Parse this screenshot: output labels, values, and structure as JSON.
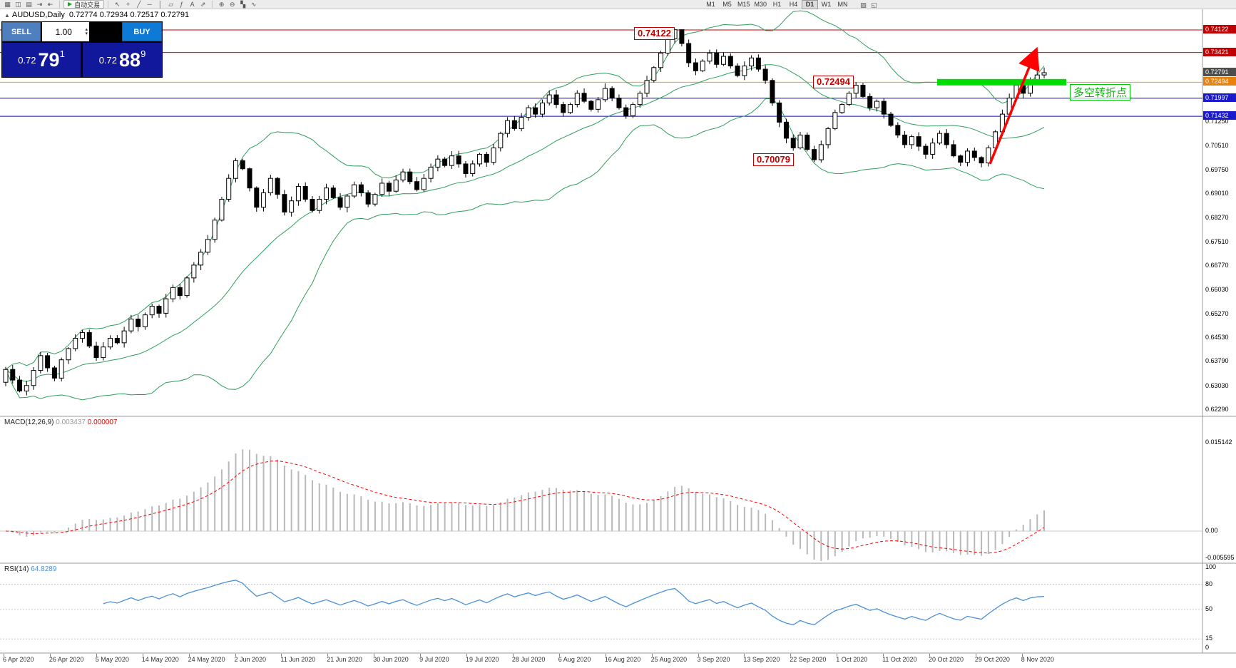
{
  "toolbar": {
    "icons_left": [
      {
        "name": "new-order-icon",
        "glyph": "▦"
      },
      {
        "name": "chart-window-icon",
        "glyph": "◫"
      },
      {
        "name": "profiles-icon",
        "glyph": "▤"
      },
      {
        "name": "auto-scroll-icon",
        "glyph": "⇥"
      },
      {
        "name": "chart-shift-icon",
        "glyph": "⇤"
      }
    ],
    "auto_trading_play": "▶",
    "auto_trading_label": "自动交易",
    "icons_draw": [
      {
        "name": "cursor-icon",
        "glyph": "↖"
      },
      {
        "name": "crosshair-icon",
        "glyph": "+"
      },
      {
        "name": "trendline-icon",
        "glyph": "╱"
      },
      {
        "name": "horizontal-line-icon",
        "glyph": "─"
      },
      {
        "name": "vertical-line-icon",
        "glyph": "│"
      },
      {
        "name": "equidistant-channel-icon",
        "glyph": "▱"
      },
      {
        "name": "fibonacci-icon",
        "glyph": "ƒ"
      },
      {
        "name": "text-label-icon",
        "glyph": "A"
      },
      {
        "name": "arrows-tool-icon",
        "glyph": "⇗"
      }
    ],
    "icons_zoom": [
      {
        "name": "zoom-in-icon",
        "glyph": "⊕"
      },
      {
        "name": "zoom-out-icon",
        "glyph": "⊖"
      },
      {
        "name": "tile-windows-icon",
        "glyph": "▚"
      },
      {
        "name": "indicators-icon",
        "glyph": "∿"
      }
    ],
    "timeframes": [
      "M1",
      "M5",
      "M15",
      "M30",
      "H1",
      "H4",
      "D1",
      "W1",
      "MN"
    ],
    "active_timeframe": "D1",
    "icons_right": [
      {
        "name": "templates-icon",
        "glyph": "▨"
      },
      {
        "name": "strategy-tester-icon",
        "glyph": "◱"
      }
    ]
  },
  "chart": {
    "symbol_marker": "▲",
    "title": "AUDUSD,Daily",
    "ohlc": "0.72774 0.72934 0.72517 0.72791"
  },
  "trade_panel": {
    "sell_label": "SELL",
    "buy_label": "BUY",
    "volume": "1.00",
    "spin_up": "▴",
    "spin_down": "▾",
    "sell_price": {
      "prefix": "0.72",
      "big": "79",
      "sup": "1"
    },
    "buy_price": {
      "prefix": "0.72",
      "big": "88",
      "sup": "9"
    }
  },
  "annotations": {
    "resistance_label": "0.74122",
    "pivot_label": "0.72494",
    "support_label": "0.70079",
    "zone_label": "多空转折点"
  },
  "price_axis": {
    "tags": [
      {
        "text": "0.74122",
        "bg": "#c00000"
      },
      {
        "text": "0.73421",
        "bg": "#c00000"
      },
      {
        "text": "0.72791",
        "bg": "#4d4d4d"
      },
      {
        "text": "0.72494",
        "bg": "#e8820c"
      },
      {
        "text": "0.71997",
        "bg": "#1a1acc"
      },
      {
        "text": "0.71432",
        "bg": "#1a1acc"
      }
    ],
    "plain": [
      "0.71250",
      "0.70510",
      "0.69750",
      "0.69010",
      "0.68270",
      "0.67510",
      "0.66770",
      "0.66030",
      "0.65270",
      "0.64530",
      "0.63790",
      "0.63030",
      "0.62290"
    ]
  },
  "macd": {
    "label": "MACD(12,26,9)",
    "value_main": "0.003437",
    "value_signal": "0.000007",
    "axis": [
      "0.015142",
      "0.00",
      "-0.005595"
    ]
  },
  "rsi": {
    "label": "RSI(14)",
    "value": "64.8289",
    "axis": [
      "100",
      "80",
      "50",
      "15",
      "0"
    ]
  },
  "dates": [
    "6 Apr 2020",
    "26 Apr 2020",
    "5 May 2020",
    "14 May 2020",
    "24 May 2020",
    "2 Jun 2020",
    "11 Jun 2020",
    "21 Jun 2020",
    "30 Jun 2020",
    "9 Jul 2020",
    "19 Jul 2020",
    "28 Jul 2020",
    "6 Aug 2020",
    "16 Aug 2020",
    "25 Aug 2020",
    "3 Sep 2020",
    "13 Sep 2020",
    "22 Sep 2020",
    "1 Oct 2020",
    "11 Oct 2020",
    "20 Oct 2020",
    "29 Oct 2020",
    "8 Nov 2020"
  ],
  "chart_data": {
    "type": "candlestick",
    "symbol": "AUDUSD",
    "timeframe": "Daily",
    "current": {
      "open": 0.72774,
      "high": 0.72934,
      "low": 0.72517,
      "close": 0.72791,
      "bid": 0.72791,
      "ask": 0.72889
    },
    "y_axis": {
      "top_price": 0.74366,
      "bottom_price": 0.62223
    },
    "closes": [
      0.6355,
      0.6322,
      0.6288,
      0.6305,
      0.6352,
      0.6398,
      0.636,
      0.6328,
      0.6385,
      0.642,
      0.6452,
      0.647,
      0.6428,
      0.6392,
      0.6425,
      0.6452,
      0.6438,
      0.6475,
      0.6512,
      0.6488,
      0.6525,
      0.6552,
      0.653,
      0.6575,
      0.661,
      0.6585,
      0.664,
      0.668,
      0.672,
      0.676,
      0.682,
      0.6885,
      0.695,
      0.7005,
      0.698,
      0.692,
      0.686,
      0.6905,
      0.695,
      0.69,
      0.6845,
      0.688,
      0.6925,
      0.6885,
      0.685,
      0.6885,
      0.692,
      0.689,
      0.686,
      0.6895,
      0.693,
      0.6905,
      0.687,
      0.69,
      0.6935,
      0.691,
      0.6945,
      0.697,
      0.694,
      0.6915,
      0.695,
      0.6985,
      0.701,
      0.699,
      0.702,
      0.6995,
      0.6965,
      0.6995,
      0.7025,
      0.7,
      0.7045,
      0.709,
      0.713,
      0.7105,
      0.714,
      0.717,
      0.715,
      0.7185,
      0.721,
      0.718,
      0.7155,
      0.718,
      0.7215,
      0.719,
      0.7165,
      0.7195,
      0.723,
      0.72,
      0.717,
      0.7145,
      0.718,
      0.7215,
      0.7255,
      0.7295,
      0.734,
      0.7385,
      0.7413,
      0.737,
      0.731,
      0.7285,
      0.7315,
      0.734,
      0.7305,
      0.733,
      0.73,
      0.727,
      0.73,
      0.7325,
      0.729,
      0.7255,
      0.7185,
      0.7125,
      0.7075,
      0.7045,
      0.7085,
      0.704,
      0.7008,
      0.7055,
      0.7105,
      0.7155,
      0.718,
      0.7215,
      0.724,
      0.7205,
      0.717,
      0.719,
      0.715,
      0.7115,
      0.7085,
      0.7055,
      0.708,
      0.705,
      0.7025,
      0.706,
      0.709,
      0.7055,
      0.702,
      0.7,
      0.7035,
      0.7015,
      0.6998,
      0.7045,
      0.7095,
      0.715,
      0.72,
      0.724,
      0.7215,
      0.7255,
      0.7272,
      0.7279
    ],
    "levels": [
      {
        "price": 0.74122,
        "color": "#cc0000"
      },
      {
        "price": 0.73421,
        "color": "#cc0000"
      },
      {
        "price": 0.72494,
        "color": "#ff9900"
      },
      {
        "price": 0.71997,
        "color": "#0000ee"
      },
      {
        "price": 0.71432,
        "color": "#0000ee"
      }
    ],
    "support_price": 0.70079,
    "zone": {
      "price": 0.72494,
      "color": "#00dd00"
    },
    "bollinger": {
      "period": 20,
      "deviation": 2,
      "color": "#2e9e5b"
    },
    "macd": {
      "fast": 12,
      "slow": 26,
      "signal": 9,
      "histogram_color": "#b9b9b9",
      "signal_color": "#ff0000",
      "scale_max": 0.015142,
      "scale_min": -0.005595
    },
    "rsi": {
      "period": 14,
      "color": "#4a90d9",
      "levels": [
        80,
        50,
        15
      ]
    },
    "trend_arrow": {
      "color": "#ff0000",
      "from_price": 0.6995,
      "to_price": 0.7345
    }
  }
}
